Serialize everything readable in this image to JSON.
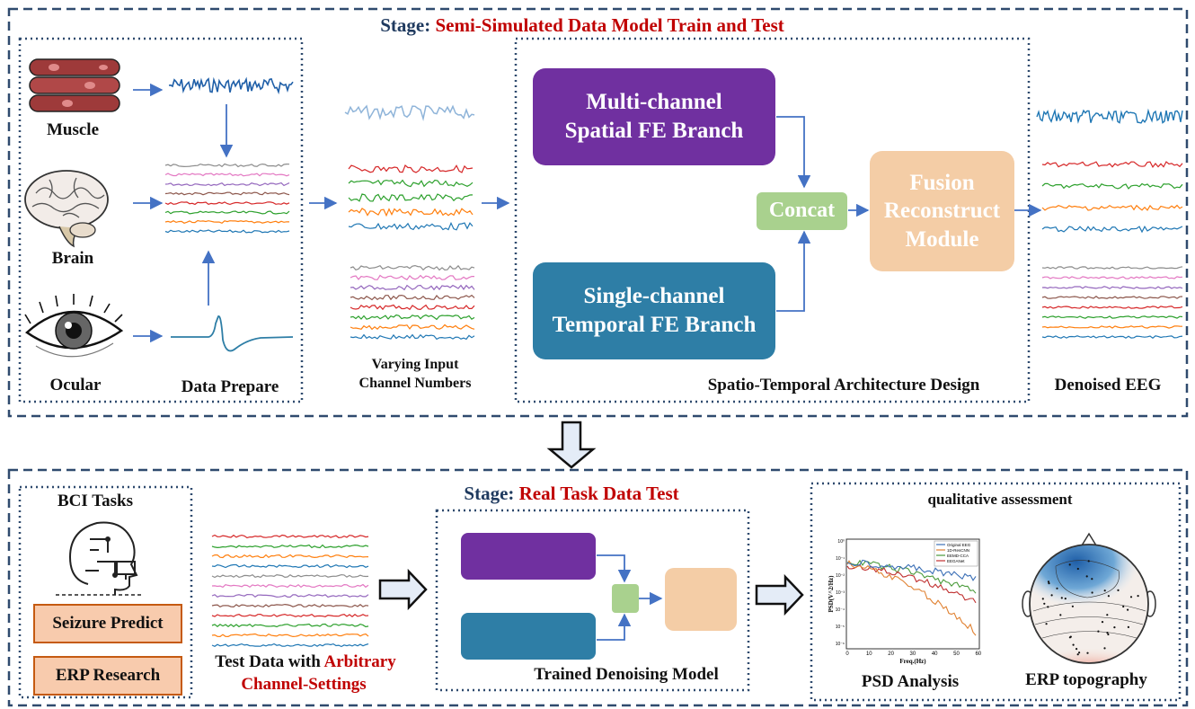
{
  "top_stage": {
    "prefix": "Stage: ",
    "title": "Semi-Simulated Data Model Train and Test"
  },
  "bottom_stage": {
    "prefix": "Stage: ",
    "title": "Real Task Data Test"
  },
  "sources": {
    "muscle": "Muscle",
    "brain": "Brain",
    "ocular": "Ocular",
    "data_prepare": "Data Prepare"
  },
  "varying_input": {
    "line1": "Varying Input",
    "line2": "Channel Numbers"
  },
  "architecture": {
    "spatial_line1": "Multi-channel",
    "spatial_line2": "Spatial FE Branch",
    "temporal_line1": "Single-channel",
    "temporal_line2": "Temporal FE Branch",
    "concat": "Concat",
    "fusion_line1": "Fusion",
    "fusion_line2": "Reconstruct",
    "fusion_line3": "Module",
    "caption": "Spatio-Temporal Architecture Design"
  },
  "output": {
    "denoised": "Denoised EEG"
  },
  "bci": {
    "title": "BCI Tasks",
    "seizure": "Seizure Predict",
    "erp": "ERP Research"
  },
  "test_data": {
    "prefix": "Test Data with ",
    "highlight": "Arbitrary",
    "line2": "Channel-Settings"
  },
  "trained_model": {
    "caption": "Trained Denoising Model"
  },
  "assessment": {
    "title": "qualitative assessment",
    "psd": "PSD Analysis",
    "erp_topo": "ERP topography",
    "psd_ylabel": "PSD(V^2/Hz)",
    "psd_xlabel": "Freq.(Hz)",
    "psd_xticks": [
      "0",
      "10",
      "20",
      "30",
      "40",
      "50",
      "60"
    ],
    "psd_yticks": [
      "10⁰",
      "10⁻¹",
      "10⁻²",
      "10⁻³",
      "10⁻⁴",
      "10⁻⁵",
      "10⁻⁶"
    ],
    "legend": [
      "Original EEG",
      "1D-ResCNN",
      "EEMD-CCA",
      "EEGANet"
    ]
  },
  "colors": {
    "frame": "#2f4a6e",
    "purple": "#7030a0",
    "teal": "#2e7ea6",
    "concat": "#a9d18e",
    "fusion": "#f4cda6",
    "arrow": "#4472c4",
    "emg": "#1f5fa8",
    "red_text": "#c00000"
  }
}
